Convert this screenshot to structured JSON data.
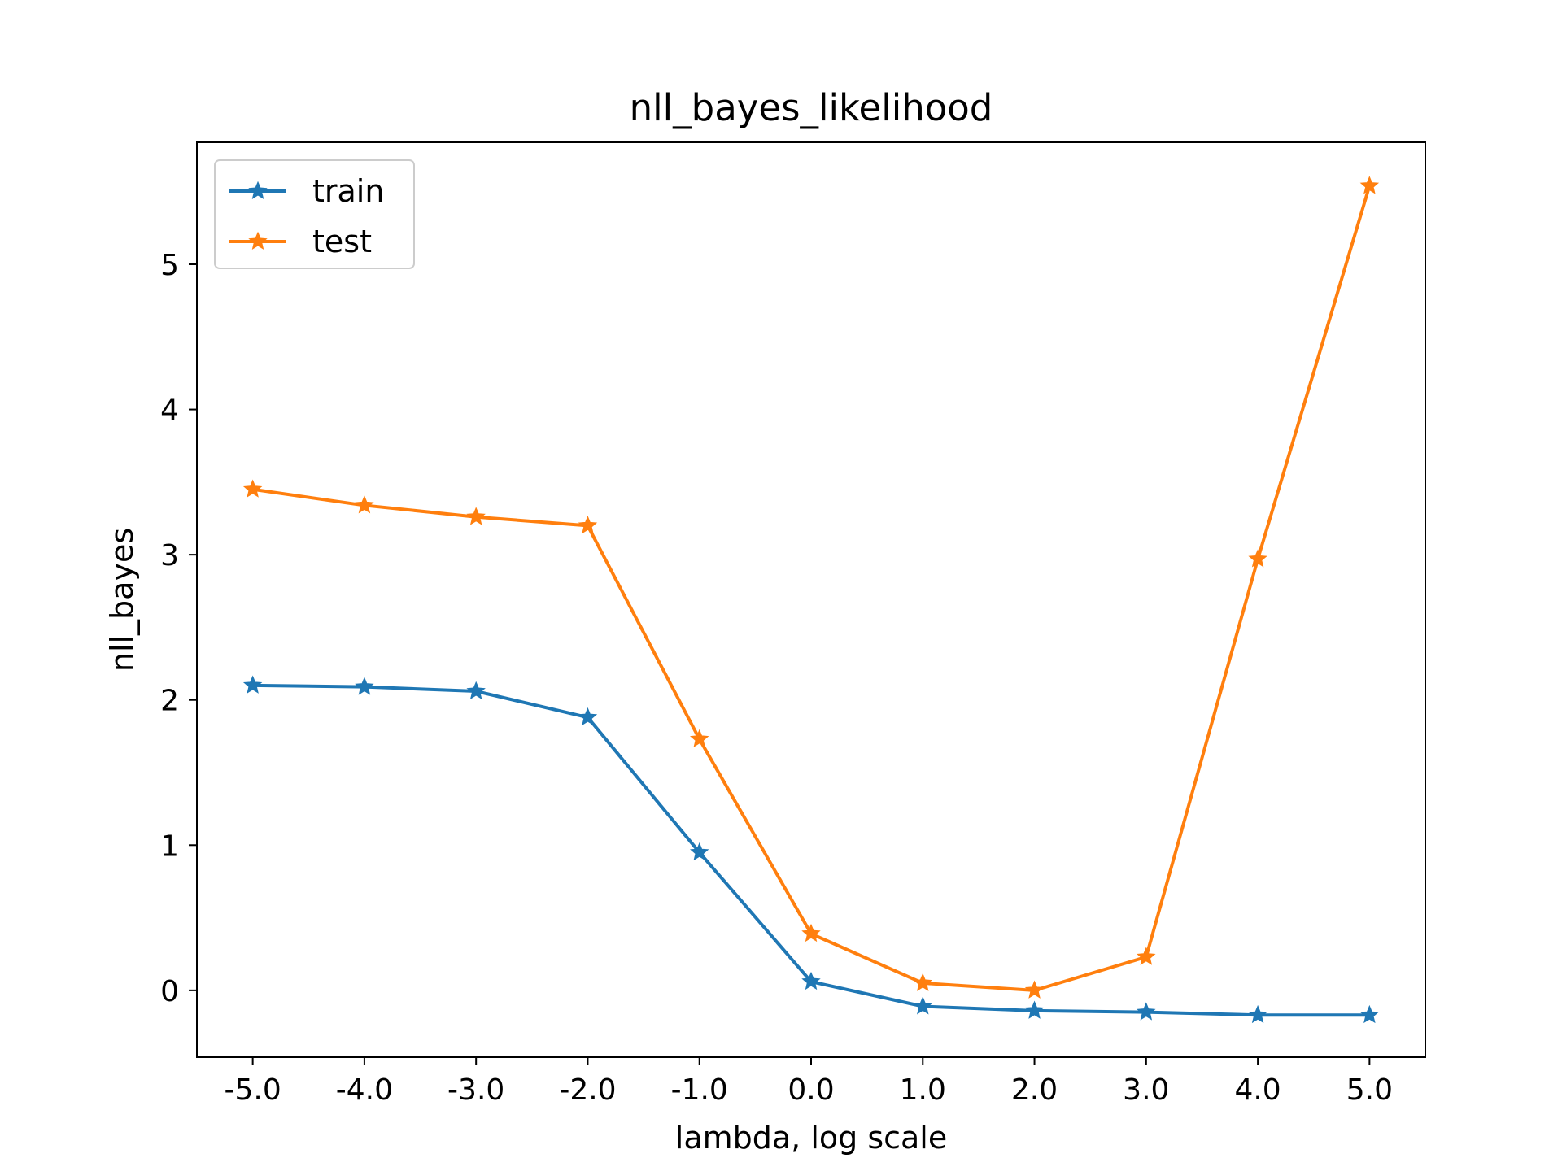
{
  "chart_data": {
    "type": "line",
    "title": "nll_bayes_likelihood",
    "xlabel": "lambda, log scale",
    "ylabel": "nll_bayes",
    "x": [
      -5.0,
      -4.0,
      -3.0,
      -2.0,
      -1.0,
      0.0,
      1.0,
      2.0,
      3.0,
      4.0,
      5.0
    ],
    "x_tick_labels": [
      "-5.0",
      "-4.0",
      "-3.0",
      "-2.0",
      "-1.0",
      "0.0",
      "1.0",
      "2.0",
      "3.0",
      "4.0",
      "5.0"
    ],
    "y_ticks": [
      0,
      1,
      2,
      3,
      4,
      5
    ],
    "y_tick_labels": [
      "0",
      "1",
      "2",
      "3",
      "4",
      "5"
    ],
    "xlim": [
      -5.5,
      5.5
    ],
    "ylim": [
      -0.46,
      5.84
    ],
    "grid": false,
    "legend_position": "upper-left",
    "series": [
      {
        "name": "train",
        "color": "#1f77b4",
        "marker": "star",
        "values": [
          2.1,
          2.09,
          2.06,
          1.88,
          0.95,
          0.06,
          -0.11,
          -0.14,
          -0.15,
          -0.17,
          -0.17
        ]
      },
      {
        "name": "test",
        "color": "#ff7f0e",
        "marker": "star",
        "values": [
          3.45,
          3.34,
          3.26,
          3.2,
          1.73,
          0.39,
          0.05,
          0.0,
          0.23,
          2.97,
          5.54
        ]
      }
    ]
  }
}
